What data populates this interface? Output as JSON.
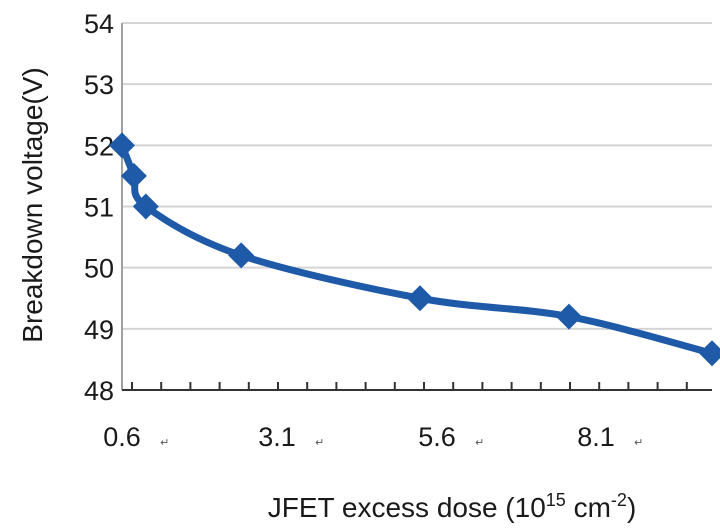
{
  "chart_data": {
    "type": "line",
    "title": "",
    "xlabel": "JFET excess dose (10",
    "xlabel_sup1": "15",
    "xlabel_mid": " cm",
    "xlabel_sup2": "-2",
    "xlabel_end": ")",
    "ylabel": "Breakdown voltage(V)",
    "x": [
      0.6,
      0.8,
      1.0,
      2.6,
      5.6,
      8.1,
      10.5
    ],
    "series": [
      {
        "name": "",
        "values": [
          52.0,
          51.5,
          51.0,
          50.2,
          49.5,
          49.2,
          48.6
        ]
      }
    ],
    "ylim": [
      48,
      54
    ],
    "yticks": [
      48,
      49,
      50,
      51,
      52,
      53,
      54
    ],
    "xtick_labels": [
      "0.6",
      "3.1",
      "5.6",
      "8.1"
    ],
    "xtick_artifacts": [
      "↵",
      "↵",
      "↵",
      "↵"
    ],
    "grid": true,
    "legend": "none",
    "colors": {
      "series": "#1f5aa8",
      "grid": "#d4d4d4",
      "axis": "#a0a0a0"
    }
  }
}
